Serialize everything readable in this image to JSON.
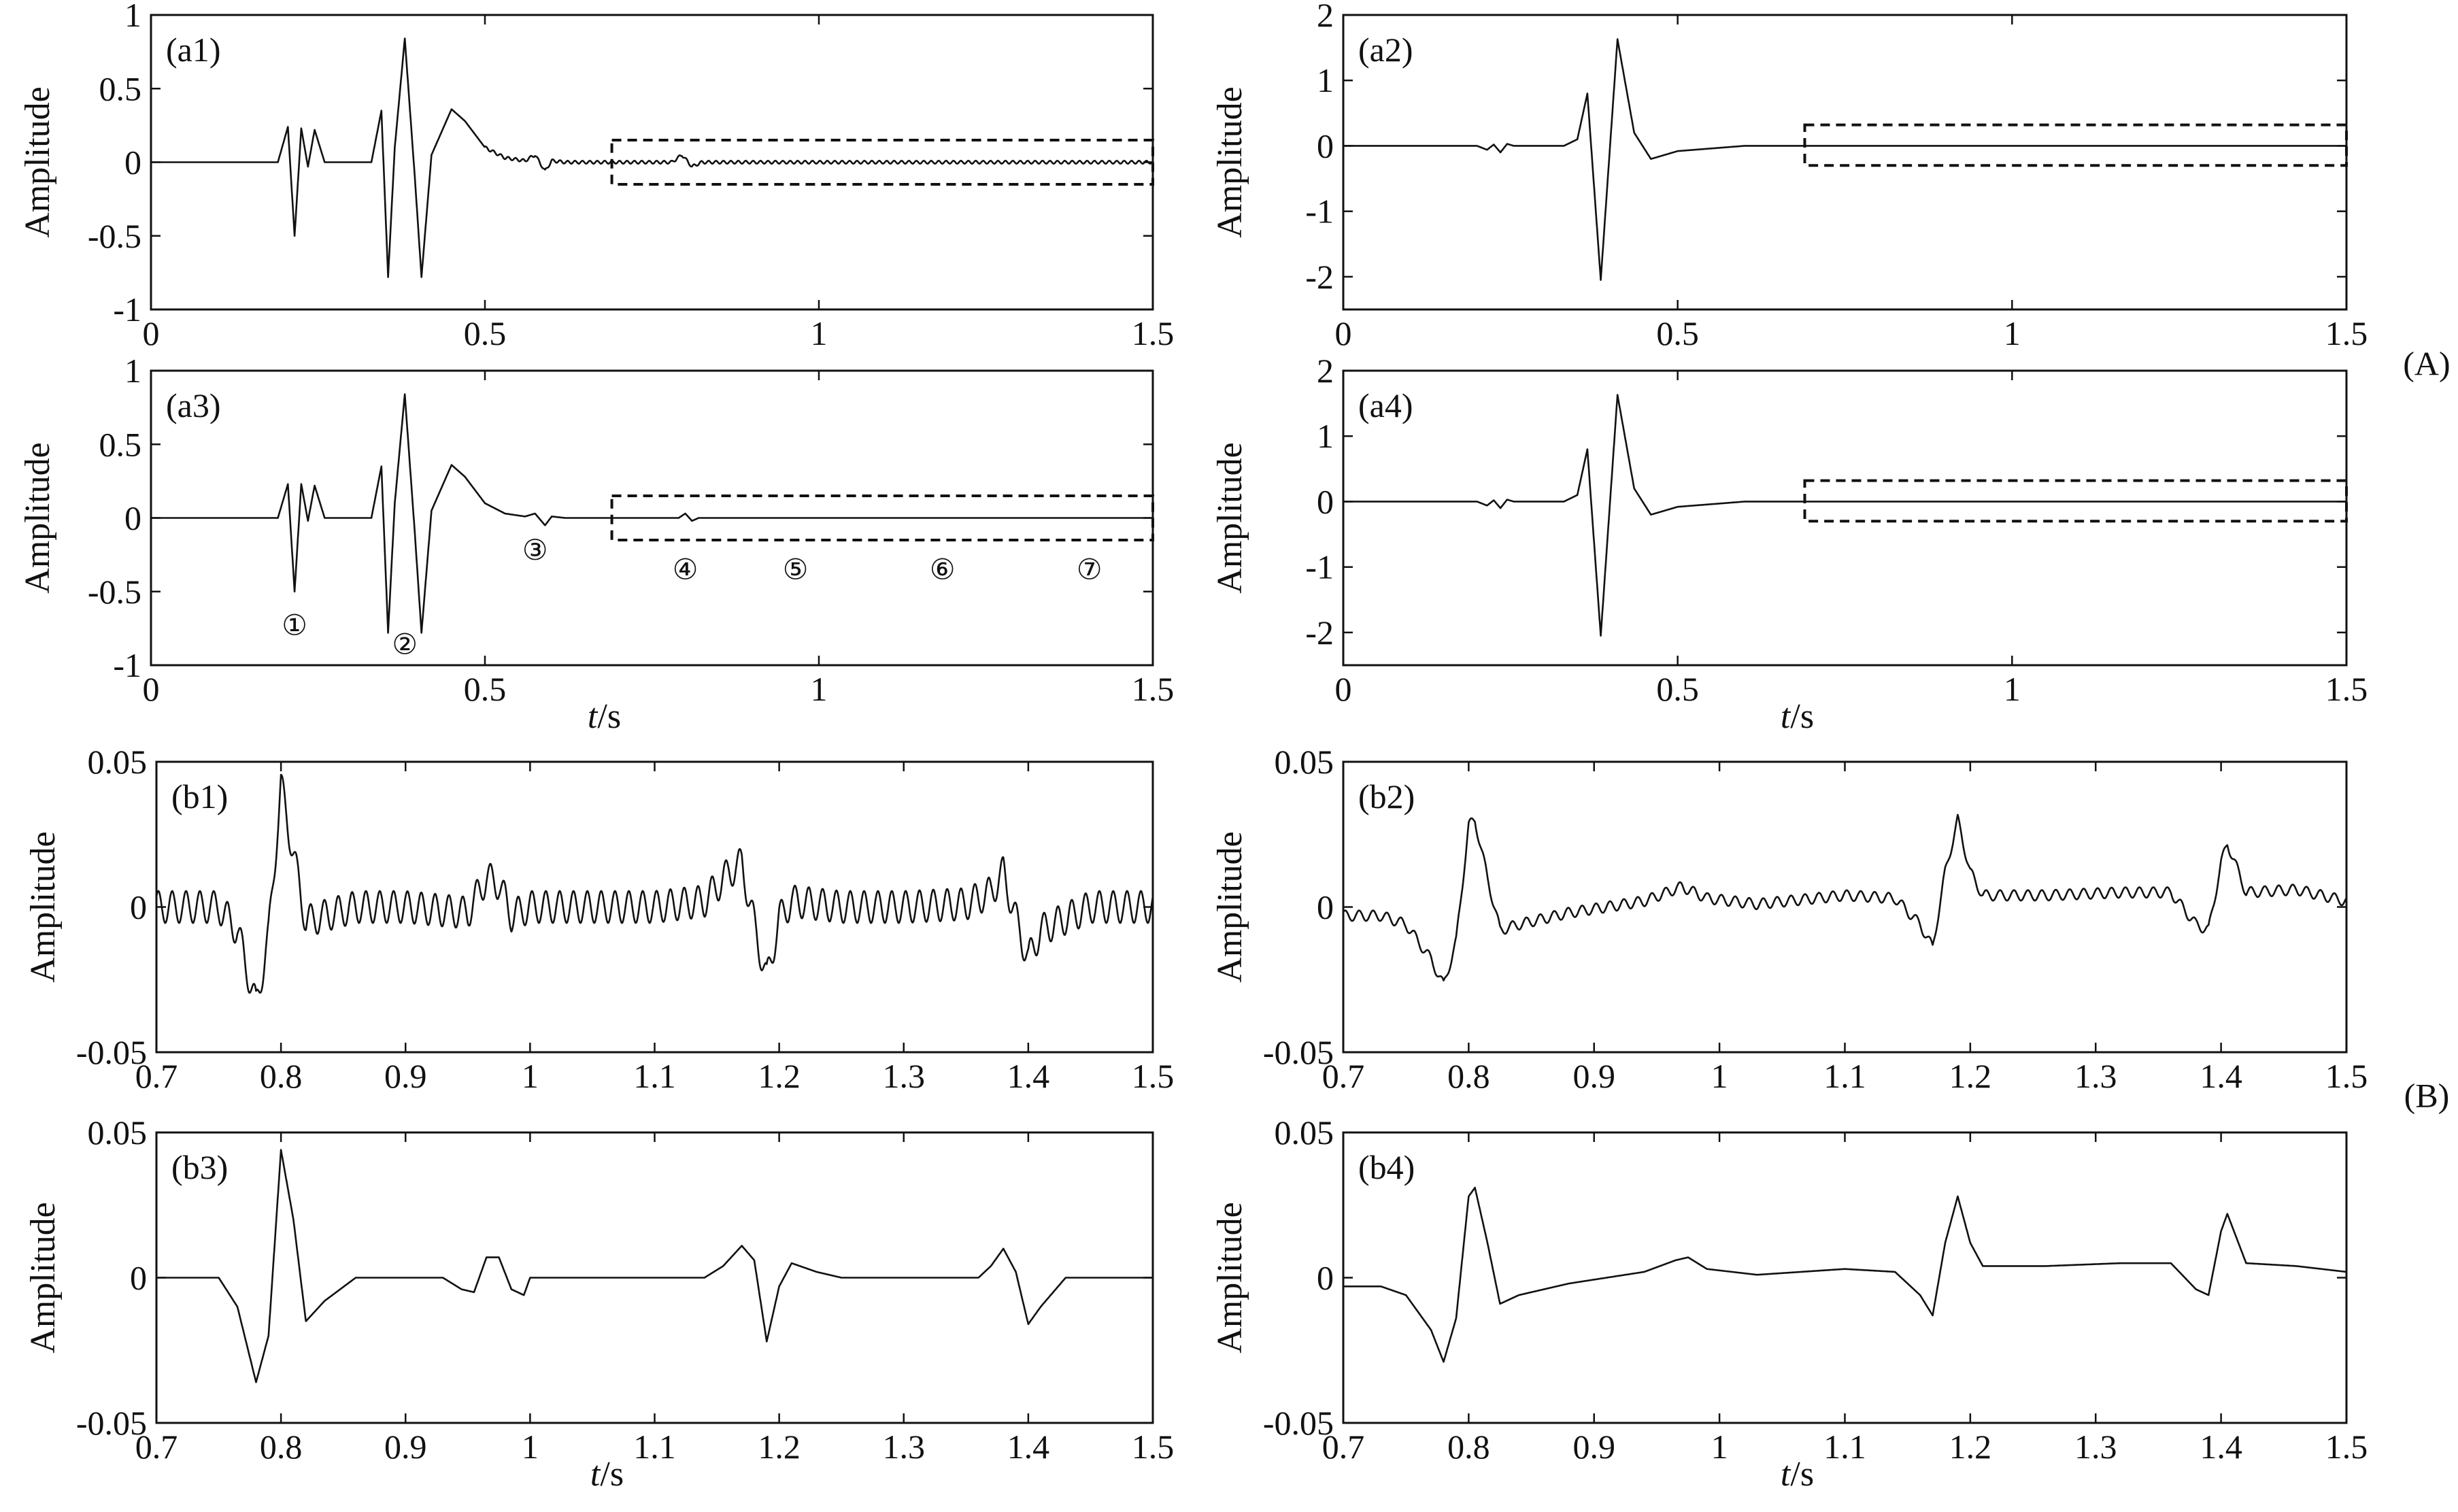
{
  "group_labels": [
    "(A)",
    "(B)"
  ],
  "chart_data": [
    {
      "id": "a1",
      "type": "line",
      "panel_label": "(a1)",
      "group": "A",
      "xlabel": "",
      "ylabel": "Amplitude",
      "xlim": [
        0,
        1.5
      ],
      "ylim": [
        -1,
        1
      ],
      "xticks": [
        0,
        0.5,
        1,
        1.5
      ],
      "xtick_labels": [
        "0",
        "0.5",
        "1",
        "1.5"
      ],
      "yticks": [
        -1,
        -0.5,
        0,
        0.5,
        1
      ],
      "ytick_labels": [
        "-1",
        "-0.5",
        "0",
        "0.5",
        "1"
      ],
      "dashed_box": {
        "x": [
          0.69,
          1.5
        ],
        "y": [
          -0.15,
          0.15
        ]
      },
      "series": [
        {
          "noise": 0.01,
          "noise_start": 0.5,
          "x": [
            0,
            0.19,
            0.205,
            0.215,
            0.225,
            0.235,
            0.245,
            0.26,
            0.33,
            0.345,
            0.355,
            0.365,
            0.38,
            0.395,
            0.405,
            0.42,
            0.45,
            0.47,
            0.5,
            0.53,
            0.56,
            0.575,
            0.59,
            0.6,
            0.62,
            0.78,
            0.795,
            0.81,
            0.825,
            1.5
          ],
          "y": [
            0,
            0,
            0.24,
            -0.5,
            0.23,
            -0.03,
            0.22,
            0,
            0,
            0.35,
            -0.78,
            0.1,
            0.84,
            -0.1,
            -0.78,
            0.05,
            0.36,
            0.28,
            0.1,
            0.03,
            0.01,
            0.05,
            -0.06,
            0.01,
            0,
            0,
            0.05,
            -0.03,
            0,
            0
          ]
        }
      ],
      "markers": []
    },
    {
      "id": "a2",
      "type": "line",
      "panel_label": "(a2)",
      "group": "A",
      "xlabel": "",
      "ylabel": "Amplitude",
      "xlim": [
        0,
        1.5
      ],
      "ylim": [
        -2.5,
        2
      ],
      "xticks": [
        0,
        0.5,
        1,
        1.5
      ],
      "xtick_labels": [
        "0",
        "0.5",
        "1",
        "1.5"
      ],
      "yticks": [
        -2,
        -1,
        0,
        1,
        2
      ],
      "ytick_labels": [
        "-2",
        "-1",
        "0",
        "1",
        "2"
      ],
      "dashed_box": {
        "x": [
          0.69,
          1.5
        ],
        "y": [
          -0.3,
          0.32
        ]
      },
      "series": [
        {
          "noise": 0,
          "x": [
            0,
            0.2,
            0.215,
            0.225,
            0.235,
            0.245,
            0.255,
            0.33,
            0.35,
            0.365,
            0.385,
            0.41,
            0.435,
            0.46,
            0.5,
            0.55,
            0.6,
            1.5
          ],
          "y": [
            0,
            0,
            -0.06,
            0.02,
            -0.1,
            0.03,
            0,
            0,
            0.1,
            0.8,
            -2.05,
            1.63,
            0.2,
            -0.2,
            -0.08,
            -0.04,
            0,
            0
          ]
        }
      ],
      "markers": []
    },
    {
      "id": "a3",
      "type": "line",
      "panel_label": "(a3)",
      "group": "A",
      "xlabel": "t/s",
      "ylabel": "Amplitude",
      "xlim": [
        0,
        1.5
      ],
      "ylim": [
        -1,
        1
      ],
      "xticks": [
        0,
        0.5,
        1,
        1.5
      ],
      "xtick_labels": [
        "0",
        "0.5",
        "1",
        "1.5"
      ],
      "yticks": [
        -1,
        -0.5,
        0,
        0.5,
        1
      ],
      "ytick_labels": [
        "-1",
        "-0.5",
        "0",
        "0.5",
        "1"
      ],
      "dashed_box": {
        "x": [
          0.69,
          1.5
        ],
        "y": [
          -0.15,
          0.15
        ]
      },
      "series": [
        {
          "noise": 0,
          "x": [
            0,
            0.19,
            0.205,
            0.215,
            0.225,
            0.235,
            0.245,
            0.26,
            0.33,
            0.345,
            0.355,
            0.365,
            0.38,
            0.395,
            0.405,
            0.42,
            0.45,
            0.47,
            0.5,
            0.53,
            0.56,
            0.575,
            0.59,
            0.6,
            0.62,
            0.79,
            0.8,
            0.81,
            0.82,
            1.5
          ],
          "y": [
            0,
            0,
            0.23,
            -0.5,
            0.23,
            -0.02,
            0.22,
            0,
            0,
            0.35,
            -0.78,
            0.1,
            0.84,
            -0.1,
            -0.78,
            0.05,
            0.36,
            0.28,
            0.1,
            0.03,
            0.01,
            0.03,
            -0.05,
            0.01,
            0,
            0,
            0.03,
            -0.02,
            0,
            0
          ]
        }
      ],
      "markers": [
        {
          "label": "①",
          "x": 0.215,
          "y": -0.73
        },
        {
          "label": "②",
          "x": 0.38,
          "y": -0.86
        },
        {
          "label": "③",
          "x": 0.575,
          "y": -0.22
        },
        {
          "label": "④",
          "x": 0.8,
          "y": -0.35
        },
        {
          "label": "⑤",
          "x": 0.965,
          "y": -0.35
        },
        {
          "label": "⑥",
          "x": 1.185,
          "y": -0.35
        },
        {
          "label": "⑦",
          "x": 1.405,
          "y": -0.35
        }
      ]
    },
    {
      "id": "a4",
      "type": "line",
      "panel_label": "(a4)",
      "group": "A",
      "xlabel": "t/s",
      "ylabel": "Amplitude",
      "xlim": [
        0,
        1.5
      ],
      "ylim": [
        -2.5,
        2
      ],
      "xticks": [
        0,
        0.5,
        1,
        1.5
      ],
      "xtick_labels": [
        "0",
        "0.5",
        "1",
        "1.5"
      ],
      "yticks": [
        -2,
        -1,
        0,
        1,
        2
      ],
      "ytick_labels": [
        "-2",
        "-1",
        "0",
        "1",
        "2"
      ],
      "dashed_box": {
        "x": [
          0.69,
          1.5
        ],
        "y": [
          -0.3,
          0.32
        ]
      },
      "series": [
        {
          "noise": 0,
          "x": [
            0,
            0.2,
            0.215,
            0.225,
            0.235,
            0.245,
            0.255,
            0.33,
            0.35,
            0.365,
            0.385,
            0.41,
            0.435,
            0.46,
            0.5,
            0.55,
            0.6,
            1.5
          ],
          "y": [
            0,
            0,
            -0.06,
            0.02,
            -0.1,
            0.03,
            0,
            0,
            0.1,
            0.8,
            -2.05,
            1.63,
            0.2,
            -0.2,
            -0.08,
            -0.04,
            0,
            0
          ]
        }
      ],
      "markers": []
    },
    {
      "id": "b1",
      "type": "line",
      "panel_label": "(b1)",
      "group": "B",
      "xlabel": "",
      "ylabel": "Amplitude",
      "xlim": [
        0.7,
        1.5
      ],
      "ylim": [
        -0.05,
        0.05
      ],
      "xticks": [
        0.7,
        0.8,
        0.9,
        1,
        1.1,
        1.2,
        1.3,
        1.4,
        1.5
      ],
      "xtick_labels": [
        "0.7",
        "0.8",
        "0.9",
        "1",
        "1.1",
        "1.2",
        "1.3",
        "1.4",
        "1.5"
      ],
      "yticks": [
        -0.05,
        0,
        0.05
      ],
      "ytick_labels": [
        "-0.05",
        "0",
        "0.05"
      ],
      "dashed_box": null,
      "series": [
        {
          "noise": 0.0055,
          "noise_start": 0.7,
          "x": [
            0.7,
            0.75,
            0.765,
            0.78,
            0.79,
            0.8,
            0.81,
            0.82,
            0.835,
            0.86,
            0.9,
            0.95,
            0.965,
            0.975,
            0.985,
            1.0,
            1.1,
            1.14,
            1.16,
            1.17,
            1.18,
            1.19,
            1.2,
            1.21,
            1.25,
            1.3,
            1.35,
            1.37,
            1.38,
            1.39,
            1.4,
            1.41,
            1.43,
            1.45,
            1.5
          ],
          "y": [
            0,
            0,
            -0.008,
            -0.034,
            -0.01,
            0.042,
            0.018,
            -0.005,
            -0.003,
            0,
            0,
            -0.002,
            0.01,
            0.008,
            -0.003,
            0,
            0,
            0.002,
            0.012,
            0.015,
            -0.006,
            -0.025,
            -0.004,
            0.002,
            0,
            0,
            0.001,
            0.005,
            0.012,
            -0.004,
            -0.018,
            -0.008,
            -0.004,
            0,
            0
          ]
        }
      ],
      "markers": []
    },
    {
      "id": "b2",
      "type": "line",
      "panel_label": "(b2)",
      "group": "B",
      "xlabel": "",
      "ylabel": "Amplitude",
      "xlim": [
        0.7,
        1.5
      ],
      "ylim": [
        -0.05,
        0.05
      ],
      "xticks": [
        0.7,
        0.8,
        0.9,
        1,
        1.1,
        1.2,
        1.3,
        1.4,
        1.5
      ],
      "xtick_labels": [
        "0.7",
        "0.8",
        "0.9",
        "1",
        "1.1",
        "1.2",
        "1.3",
        "1.4",
        "1.5"
      ],
      "yticks": [
        -0.05,
        0,
        0.05
      ],
      "ytick_labels": [
        "-0.05",
        "0",
        "0.05"
      ],
      "dashed_box": null,
      "series": [
        {
          "noise": 0.0018,
          "noise_start": 0.7,
          "x": [
            0.7,
            0.73,
            0.75,
            0.77,
            0.78,
            0.79,
            0.8,
            0.805,
            0.815,
            0.825,
            0.84,
            0.88,
            0.94,
            0.97,
            0.99,
            1.03,
            1.1,
            1.14,
            1.16,
            1.17,
            1.18,
            1.19,
            1.2,
            1.21,
            1.26,
            1.32,
            1.36,
            1.38,
            1.39,
            1.4,
            1.405,
            1.42,
            1.46,
            1.5
          ],
          "y": [
            -0.003,
            -0.003,
            -0.006,
            -0.018,
            -0.027,
            -0.012,
            0.028,
            0.03,
            0.01,
            -0.008,
            -0.006,
            -0.002,
            0.002,
            0.007,
            0.003,
            0.001,
            0.004,
            0.003,
            -0.006,
            -0.014,
            0.012,
            0.03,
            0.012,
            0.004,
            0.004,
            0.005,
            0.005,
            -0.006,
            -0.008,
            0.015,
            0.022,
            0.005,
            0.006,
            0.002
          ]
        }
      ],
      "markers": []
    },
    {
      "id": "b3",
      "type": "line",
      "panel_label": "(b3)",
      "group": "B",
      "xlabel": "t/s",
      "ylabel": "Amplitude",
      "xlim": [
        0.7,
        1.5
      ],
      "ylim": [
        -0.05,
        0.05
      ],
      "xticks": [
        0.7,
        0.8,
        0.9,
        1,
        1.1,
        1.2,
        1.3,
        1.4,
        1.5
      ],
      "xtick_labels": [
        "0.7",
        "0.8",
        "0.9",
        "1",
        "1.1",
        "1.2",
        "1.3",
        "1.4",
        "1.5"
      ],
      "yticks": [
        -0.05,
        0,
        0.05
      ],
      "ytick_labels": [
        "-0.05",
        "0",
        "0.05"
      ],
      "dashed_box": null,
      "series": [
        {
          "noise": 0,
          "x": [
            0.7,
            0.75,
            0.765,
            0.78,
            0.79,
            0.8,
            0.81,
            0.82,
            0.835,
            0.86,
            0.93,
            0.945,
            0.955,
            0.965,
            0.975,
            0.985,
            0.995,
            1.0,
            1.14,
            1.155,
            1.17,
            1.18,
            1.19,
            1.2,
            1.21,
            1.23,
            1.25,
            1.36,
            1.37,
            1.38,
            1.39,
            1.4,
            1.41,
            1.43,
            1.5
          ],
          "y": [
            0,
            0,
            -0.01,
            -0.036,
            -0.02,
            0.044,
            0.02,
            -0.015,
            -0.008,
            0,
            0,
            -0.004,
            -0.005,
            0.007,
            0.007,
            -0.004,
            -0.006,
            0,
            0,
            0.004,
            0.011,
            0.006,
            -0.022,
            -0.003,
            0.005,
            0.002,
            0,
            0,
            0.004,
            0.01,
            0.002,
            -0.016,
            -0.01,
            0,
            0
          ]
        }
      ],
      "markers": []
    },
    {
      "id": "b4",
      "type": "line",
      "panel_label": "(b4)",
      "group": "B",
      "xlabel": "t/s",
      "ylabel": "Amplitude",
      "xlim": [
        0.7,
        1.5
      ],
      "ylim": [
        -0.05,
        0.05
      ],
      "xticks": [
        0.7,
        0.8,
        0.9,
        1,
        1.1,
        1.2,
        1.3,
        1.4,
        1.5
      ],
      "xtick_labels": [
        "0.7",
        "0.8",
        "0.9",
        "1",
        "1.1",
        "1.2",
        "1.3",
        "1.4",
        "1.5"
      ],
      "yticks": [
        -0.05,
        0,
        0.05
      ],
      "ytick_labels": [
        "-0.05",
        "0",
        "0.05"
      ],
      "dashed_box": null,
      "series": [
        {
          "noise": 0,
          "x": [
            0.7,
            0.73,
            0.75,
            0.77,
            0.78,
            0.79,
            0.8,
            0.805,
            0.815,
            0.825,
            0.84,
            0.88,
            0.94,
            0.965,
            0.975,
            0.99,
            1.03,
            1.1,
            1.14,
            1.16,
            1.17,
            1.18,
            1.19,
            1.2,
            1.21,
            1.26,
            1.32,
            1.36,
            1.38,
            1.39,
            1.4,
            1.405,
            1.42,
            1.46,
            1.5
          ],
          "y": [
            -0.003,
            -0.003,
            -0.006,
            -0.018,
            -0.029,
            -0.014,
            0.028,
            0.031,
            0.012,
            -0.009,
            -0.006,
            -0.002,
            0.002,
            0.006,
            0.007,
            0.003,
            0.001,
            0.003,
            0.002,
            -0.006,
            -0.013,
            0.012,
            0.028,
            0.012,
            0.004,
            0.004,
            0.005,
            0.005,
            -0.004,
            -0.006,
            0.016,
            0.022,
            0.005,
            0.004,
            0.002
          ]
        }
      ],
      "markers": []
    }
  ]
}
